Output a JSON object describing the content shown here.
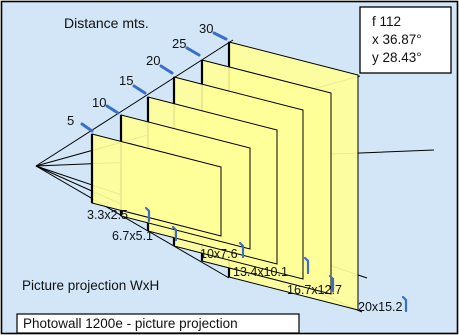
{
  "colors": {
    "background": "#d2e6f7",
    "border": "#000000",
    "panel_fill": "#ffff99",
    "panel_fill_light": "#ffffc8",
    "panel_edge": "#000000",
    "leader": "#3a6ec8",
    "footer_bg": "#ffffff"
  },
  "header_label": "Distance mts.",
  "size_caption": "Picture projection WxH",
  "footer_title": "Photowall 1200e  -  picture projection",
  "info_box": {
    "focal": "f 112",
    "x_angle": "x 36.87°",
    "y_angle": "y 28.43°"
  },
  "distances": [
    "5",
    "10",
    "15",
    "20",
    "25",
    "30"
  ],
  "sizes": [
    "3.3x2.5",
    "6.7x5.1",
    "10x7.6",
    "13.4x10.1",
    "16.7x12.7",
    "20x15.2"
  ]
}
